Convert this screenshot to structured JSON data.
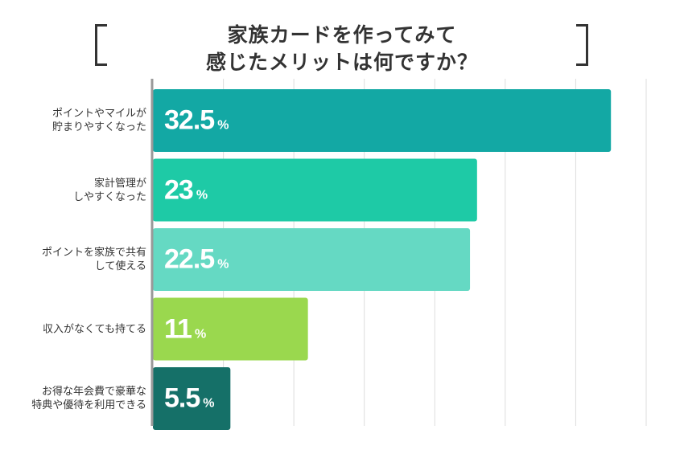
{
  "title": {
    "line1": "家族カードを作ってみて",
    "line2": "感じたメリットは何ですか？"
  },
  "chart_data": {
    "type": "bar",
    "orientation": "horizontal",
    "categories": [
      "ポイントやマイルが\n貯まりやすくなった",
      "家計管理が\nしやすくなった",
      "ポイントを家族で共有\nして使える",
      "収入がなくても持てる",
      "お得な年会費で豪華な\n特典や優待を利用できる"
    ],
    "values": [
      32.5,
      23,
      22.5,
      11,
      5.5
    ],
    "value_labels": [
      "32.5",
      "23",
      "22.5",
      "11",
      "5.5"
    ],
    "unit": "%",
    "xlim": [
      0,
      35
    ],
    "grid": true,
    "colors": [
      "#13a8a4",
      "#1ecaa6",
      "#65d9c3",
      "#9ad84e",
      "#157068"
    ]
  }
}
